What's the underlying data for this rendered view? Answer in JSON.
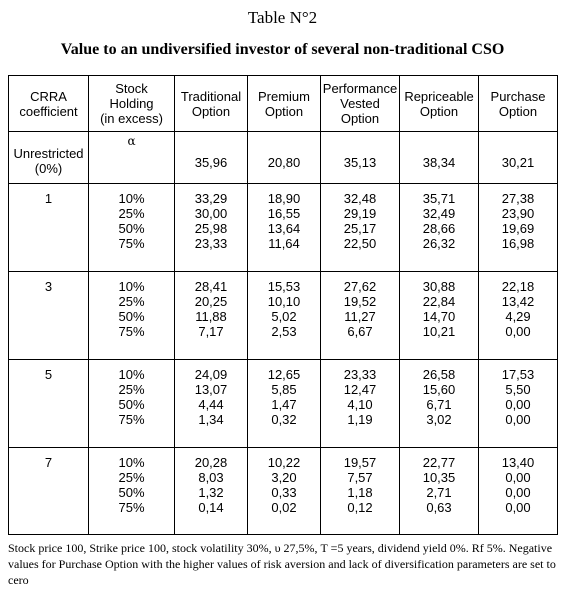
{
  "table_number": "Table N°2",
  "title": "Value to an undiversified investor of several non-traditional CSO",
  "columns": [
    {
      "lines": [
        "CRRA",
        "coefficient"
      ]
    },
    {
      "lines": [
        "Stock",
        "Holding",
        "(in excess)"
      ]
    },
    {
      "lines": [
        "Traditional",
        "Option"
      ]
    },
    {
      "lines": [
        "Premium",
        "Option"
      ]
    },
    {
      "lines": [
        "Performance",
        "Vested",
        "Option"
      ]
    },
    {
      "lines": [
        "Repriceable",
        "Option"
      ]
    },
    {
      "lines": [
        "Purchase",
        "Option"
      ]
    }
  ],
  "alpha_label": "α",
  "unrestricted": {
    "coefficient": [
      "Unrestricted",
      "(0%)"
    ],
    "values": [
      "35,96",
      "20,80",
      "35,13",
      "38,34",
      "30,21"
    ]
  },
  "groups": [
    {
      "coefficient": "1",
      "holdings": [
        "10%",
        "25%",
        "50%",
        "75%"
      ],
      "traditional": [
        "33,29",
        "30,00",
        "25,98",
        "23,33"
      ],
      "premium": [
        "18,90",
        "16,55",
        "13,64",
        "11,64"
      ],
      "performance": [
        "32,48",
        "29,19",
        "25,17",
        "22,50"
      ],
      "repriceable": [
        "35,71",
        "32,49",
        "28,66",
        "26,32"
      ],
      "purchase": [
        "27,38",
        "23,90",
        "19,69",
        "16,98"
      ]
    },
    {
      "coefficient": "3",
      "holdings": [
        "10%",
        "25%",
        "50%",
        "75%"
      ],
      "traditional": [
        "28,41",
        "20,25",
        "11,88",
        "7,17"
      ],
      "premium": [
        "15,53",
        "10,10",
        "5,02",
        "2,53"
      ],
      "performance": [
        "27,62",
        "19,52",
        "11,27",
        "6,67"
      ],
      "repriceable": [
        "30,88",
        "22,84",
        "14,70",
        "10,21"
      ],
      "purchase": [
        "22,18",
        "13,42",
        "4,29",
        "0,00"
      ]
    },
    {
      "coefficient": "5",
      "holdings": [
        "10%",
        "25%",
        "50%",
        "75%"
      ],
      "traditional": [
        "24,09",
        "13,07",
        "4,44",
        "1,34"
      ],
      "premium": [
        "12,65",
        "5,85",
        "1,47",
        "0,32"
      ],
      "performance": [
        "23,33",
        "12,47",
        "4,10",
        "1,19"
      ],
      "repriceable": [
        "26,58",
        "15,60",
        "6,71",
        "3,02"
      ],
      "purchase": [
        "17,53",
        "5,50",
        "0,00",
        "0,00"
      ]
    },
    {
      "coefficient": "7",
      "holdings": [
        "10%",
        "25%",
        "50%",
        "75%"
      ],
      "traditional": [
        "20,28",
        "8,03",
        "1,32",
        "0,14"
      ],
      "premium": [
        "10,22",
        "3,20",
        "0,33",
        "0,02"
      ],
      "performance": [
        "19,57",
        "7,57",
        "1,18",
        "0,12"
      ],
      "repriceable": [
        "22,77",
        "10,35",
        "2,71",
        "0,63"
      ],
      "purchase": [
        "13,40",
        "0,00",
        "0,00",
        "0,00"
      ]
    }
  ],
  "footnote": "Stock price 100, Strike price 100, stock volatility 30%, υ 27,5%, T =5 years, dividend yield 0%. Rf 5%. Negative values for Purchase Option with the higher values of risk aversion and lack of diversification parameters are set to cero"
}
